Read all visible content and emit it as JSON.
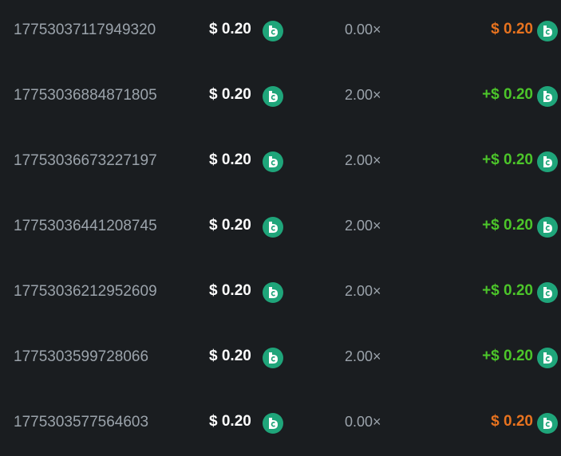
{
  "colors": {
    "loss": "#e8731f",
    "win": "#4cc52a",
    "coin": "#1fa57a"
  },
  "coin_icon": "bc-coin-icon",
  "rows": [
    {
      "id": "17753037117949320",
      "bet": "$ 0.20",
      "multiplier": "0.00×",
      "payout": "$ 0.20",
      "result": "loss"
    },
    {
      "id": "17753036884871805",
      "bet": "$ 0.20",
      "multiplier": "2.00×",
      "payout": "+$ 0.20",
      "result": "win"
    },
    {
      "id": "17753036673227197",
      "bet": "$ 0.20",
      "multiplier": "2.00×",
      "payout": "+$ 0.20",
      "result": "win"
    },
    {
      "id": "17753036441208745",
      "bet": "$ 0.20",
      "multiplier": "2.00×",
      "payout": "+$ 0.20",
      "result": "win"
    },
    {
      "id": "17753036212952609",
      "bet": "$ 0.20",
      "multiplier": "2.00×",
      "payout": "+$ 0.20",
      "result": "win"
    },
    {
      "id": "1775303599728066",
      "bet": "$ 0.20",
      "multiplier": "2.00×",
      "payout": "+$ 0.20",
      "result": "win"
    },
    {
      "id": "1775303577564603",
      "bet": "$ 0.20",
      "multiplier": "0.00×",
      "payout": "$ 0.20",
      "result": "loss"
    }
  ]
}
